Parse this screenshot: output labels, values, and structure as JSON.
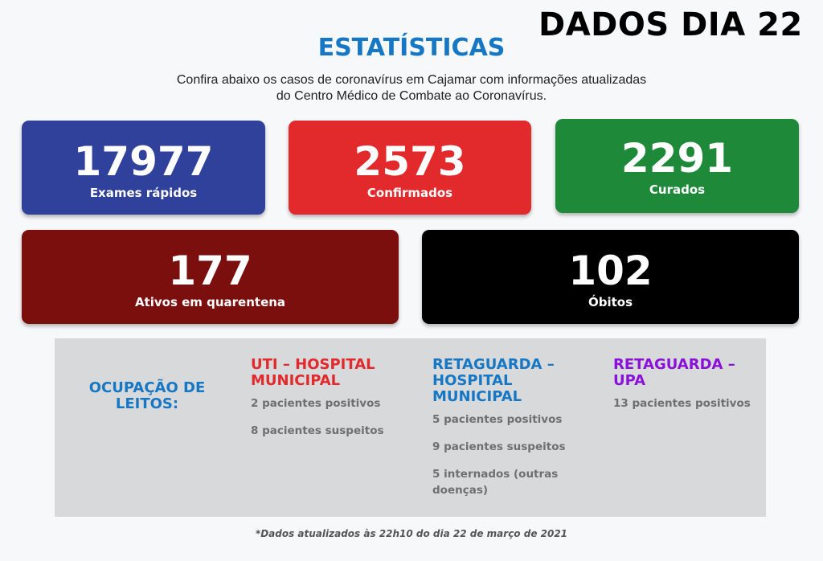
{
  "header": {
    "date_title": "DADOS DIA 22",
    "title": "ESTATÍSTICAS",
    "subtitle_line1": "Confira abaixo os casos de coronavírus em Cajamar com informações atualizadas",
    "subtitle_line2": "do Centro Médico de Combate ao Coronavírus."
  },
  "cards": {
    "exams": {
      "value": "17977",
      "label": "Exames rápidos",
      "color": "#30419b"
    },
    "confirmed": {
      "value": "2573",
      "label": "Confirmados",
      "color": "#e2292b"
    },
    "cured": {
      "value": "2291",
      "label": "Curados",
      "color": "#1e8a39"
    },
    "active": {
      "value": "177",
      "label": "Ativos em quarentena",
      "color": "#7a0f0e"
    },
    "deaths": {
      "value": "102",
      "label": "Óbitos",
      "color": "#000000"
    }
  },
  "beds": {
    "heading_line1": "OCUPAÇÃO DE",
    "heading_line2": "LEITOS:",
    "uti": {
      "title_line1": "UTI – HOSPITAL",
      "title_line2": "MUNICIPAL",
      "lines": [
        "2 pacientes positivos",
        "8 pacientes suspeitos"
      ]
    },
    "ret_hospital": {
      "title_line1": "RETAGUARDA –",
      "title_line2": "HOSPITAL",
      "title_line3": "MUNICIPAL",
      "lines": [
        "5 pacientes positivos",
        "9 pacientes suspeitos",
        "5 internados (outras",
        "doenças)"
      ]
    },
    "ret_upa": {
      "title_line1": "RETAGUARDA –",
      "title_line2": "UPA",
      "lines": [
        "13 pacientes positivos"
      ]
    }
  },
  "footnote": "*Dados atualizados às 22h10 do dia 22 de março de 2021"
}
